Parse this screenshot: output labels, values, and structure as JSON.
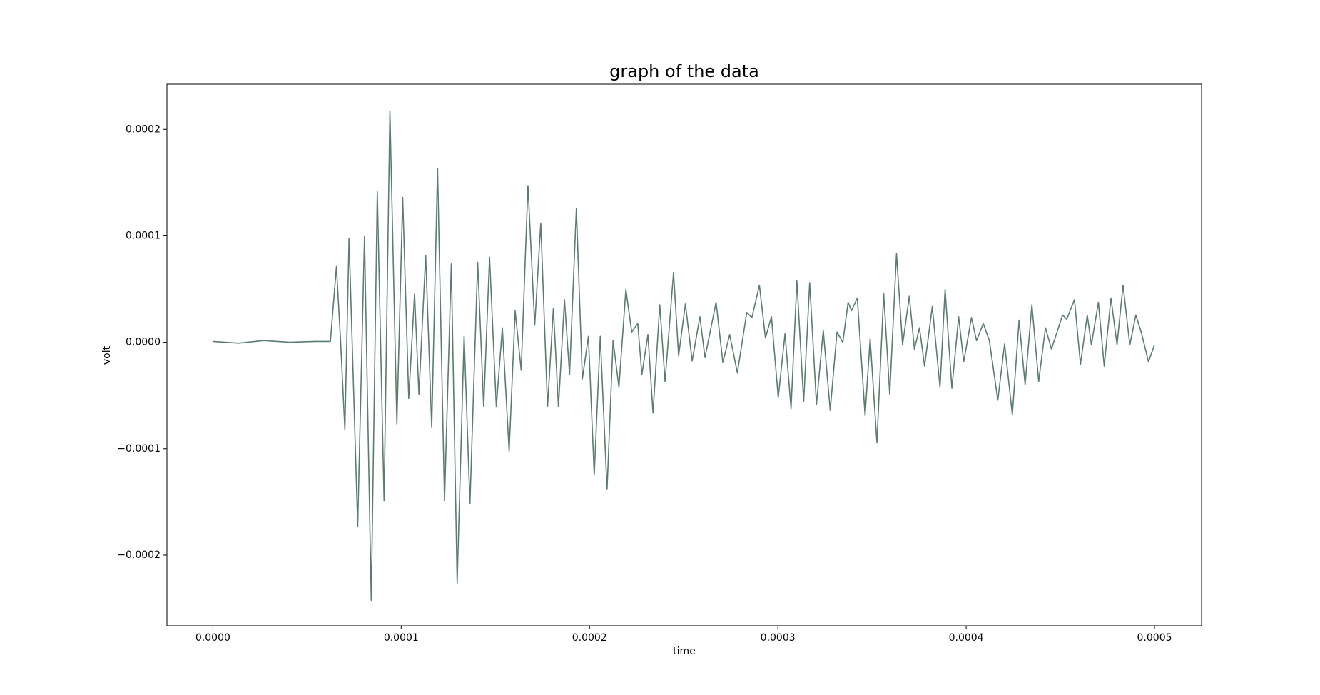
{
  "chart_data": {
    "type": "line",
    "title": "graph of the data",
    "x_label": "time",
    "y_label": "volt",
    "xlim": [
      -2.44e-05,
      0.000525
    ],
    "ylim": [
      -0.0002664,
      0.0002424
    ],
    "xticks": [
      {
        "value": 0,
        "label": "0.0000"
      },
      {
        "value": 0.0001,
        "label": "0.0001"
      },
      {
        "value": 0.0002,
        "label": "0.0002"
      },
      {
        "value": 0.0003,
        "label": "0.0003"
      },
      {
        "value": 0.0004,
        "label": "0.0004"
      },
      {
        "value": 0.0005,
        "label": "0.0005"
      }
    ],
    "yticks": [
      {
        "value": -0.0002,
        "label": "−0.0002"
      },
      {
        "value": -0.0001,
        "label": "−0.0001"
      },
      {
        "value": 0,
        "label": "0.0000"
      },
      {
        "value": 0.0001,
        "label": "0.0001"
      },
      {
        "value": 0.0002,
        "label": "0.0002"
      }
    ],
    "grid": false,
    "series": [
      {
        "color": "#5b7d6b",
        "x": [
          0,
          1.36e-05,
          2.71e-05,
          4.07e-05,
          5.42e-05,
          6.24e-05,
          6.56e-05,
          6.78e-05,
          7.01e-05,
          7.23e-05,
          7.69e-05,
          8.05e-05,
          8.41e-05,
          8.73e-05,
          9.09e-05,
          9.4e-05,
          9.77e-05,
          0.0001008,
          0.000104,
          0.0001071,
          0.0001094,
          0.000113,
          0.0001162,
          0.0001193,
          0.000123,
          0.0001266,
          0.0001297,
          0.0001334,
          0.0001365,
          0.0001406,
          0.0001438,
          0.0001469,
          0.0001505,
          0.0001537,
          0.0001573,
          0.0001605,
          0.0001637,
          0.0001673,
          0.0001709,
          0.0001741,
          0.0001777,
          0.0001808,
          0.0001835,
          0.0001867,
          0.0001894,
          0.000193,
          0.0001962,
          0.0001994,
          0.0002025,
          0.0002057,
          0.0002093,
          0.0002125,
          0.0002156,
          0.0002193,
          0.0002224,
          0.0002256,
          0.0002278,
          0.000231,
          0.0002337,
          0.0002373,
          0.0002401,
          0.0002446,
          0.0002473,
          0.0002509,
          0.0002545,
          0.0002586,
          0.0002613,
          0.0002672,
          0.0002708,
          0.0002744,
          0.0002785,
          0.0002835,
          0.0002862,
          0.0002902,
          0.0002934,
          0.0002966,
          0.0003002,
          0.0003038,
          0.000307,
          0.0003101,
          0.0003137,
          0.0003169,
          0.0003205,
          0.0003241,
          0.0003278,
          0.0003314,
          0.0003345,
          0.0003373,
          0.0003391,
          0.0003422,
          0.0003463,
          0.000349,
          0.0003526,
          0.0003562,
          0.0003594,
          0.000363,
          0.0003662,
          0.0003698,
          0.0003725,
          0.0003752,
          0.0003779,
          0.000382,
          0.0003861,
          0.0003888,
          0.0003924,
          0.000396,
          0.0003987,
          0.0004028,
          0.0004055,
          0.0004091,
          0.0004123,
          0.0004168,
          0.0004204,
          0.0004245,
          0.0004281,
          0.0004313,
          0.0004349,
          0.0004385,
          0.0004421,
          0.0004453,
          0.0004512,
          0.0004534,
          0.0004575,
          0.0004607,
          0.0004643,
          0.0004665,
          0.0004702,
          0.0004733,
          0.0004769,
          0.0004801,
          0.0004833,
          0.0004869,
          0.0004901,
          0.0004932,
          0.0004968,
          0.0005
        ],
        "values": [
          8e-07,
          -8e-07,
          1.6e-06,
          0,
          8e-07,
          8e-07,
          7.12e-05,
          1.6e-06,
          -8.24e-05,
          9.76e-05,
          -0.0001728,
          9.92e-05,
          -0.0002424,
          0.0001416,
          -0.0001488,
          0.0002176,
          -7.68e-05,
          0.000136,
          -5.28e-05,
          4.56e-05,
          -4.88e-05,
          8.16e-05,
          -8e-05,
          0.0001632,
          -0.0001488,
          7.36e-05,
          -0.0002264,
          5.6e-06,
          -0.000152,
          7.52e-05,
          -6.08e-05,
          8e-05,
          -6.08e-05,
          1.36e-05,
          -0.0001024,
          2.96e-05,
          -2.64e-05,
          0.0001472,
          1.6e-05,
          0.000112,
          -6.08e-05,
          3.2e-05,
          -6.08e-05,
          4e-05,
          -3.04e-05,
          0.0001256,
          -3.44e-05,
          5.6e-06,
          -0.0001248,
          5.6e-06,
          -0.0001384,
          1.6e-06,
          -4.24e-05,
          4.96e-05,
          9.6e-06,
          1.76e-05,
          -3.04e-05,
          7.2e-06,
          -6.64e-05,
          3.52e-05,
          -3.68e-05,
          6.56e-05,
          -1.28e-05,
          3.6e-05,
          -1.76e-05,
          2.4e-05,
          -1.44e-05,
          3.76e-05,
          -1.92e-05,
          7.2e-06,
          -2.88e-05,
          2.8e-05,
          2.32e-05,
          5.36e-05,
          4e-06,
          2.4e-05,
          -5.2e-05,
          8e-06,
          -6.24e-05,
          5.76e-05,
          -5.6e-05,
          5.6e-05,
          -5.84e-05,
          1.12e-05,
          -6.4e-05,
          9.6e-06,
          0,
          3.76e-05,
          2.96e-05,
          4.16e-05,
          -6.88e-05,
          3.2e-06,
          -9.44e-05,
          4.56e-05,
          -4.88e-05,
          8.32e-05,
          -2.4e-06,
          4.32e-05,
          -6.4e-06,
          1.36e-05,
          -2.24e-05,
          3.36e-05,
          -4.24e-05,
          4.96e-05,
          -4.32e-05,
          2.4e-05,
          -1.84e-05,
          2.32e-05,
          1.6e-06,
          1.76e-05,
          1.6e-06,
          -5.44e-05,
          -1.6e-06,
          -6.8e-05,
          2.08e-05,
          -4e-05,
          3.52e-05,
          -3.68e-05,
          1.36e-05,
          -6.4e-06,
          2.56e-05,
          2.16e-05,
          4e-05,
          -2.08e-05,
          2.56e-05,
          -2.4e-06,
          3.76e-05,
          -2.24e-05,
          4.16e-05,
          -2.4e-06,
          5.36e-05,
          -2.4e-06,
          2.56e-05,
          8e-06,
          -1.84e-05,
          -2.4e-06
        ]
      }
    ]
  }
}
